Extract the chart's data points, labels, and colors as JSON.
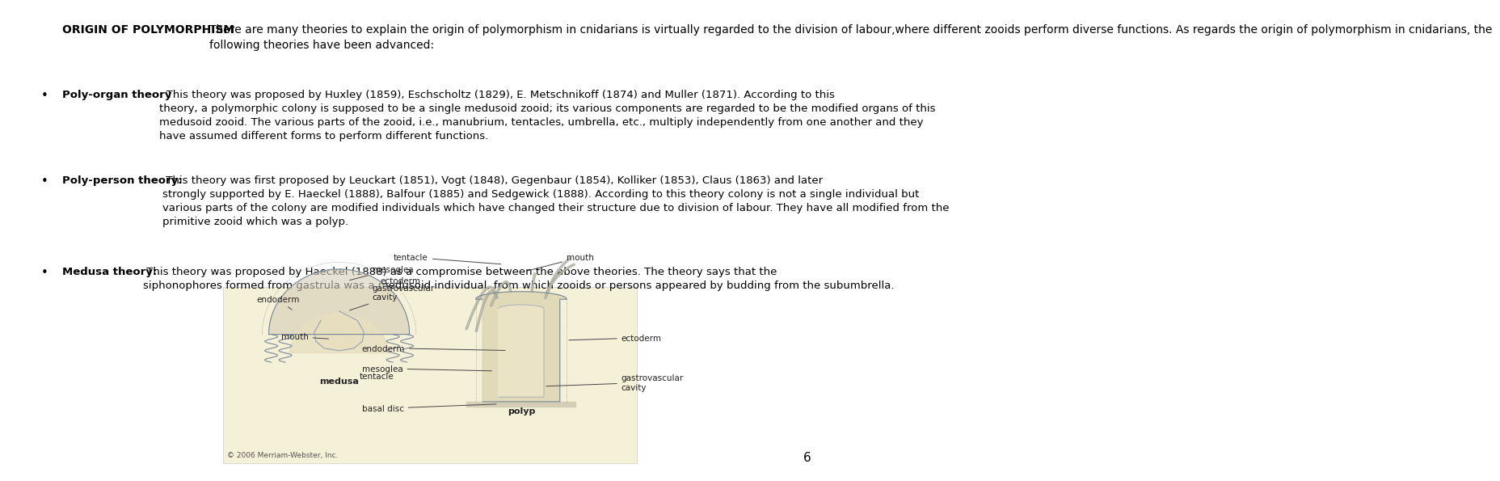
{
  "title_bold": "ORIGIN OF POLYMORPHISM",
  "title_normal": " There are many theories to explain the origin of polymorphism in cnidarians is virtually regarded to the division of labour,where different zooids perform diverse functions. As regards the origin of polymorphism in cnidarians, the following theories have been advanced:",
  "bullet1_bold": "Poly-organ theory",
  "bullet1_colon": ":",
  "bullet1_text": " This theory was proposed by Huxley (1859), Eschscholtz (1829), E. Metschnikoff (1874) and Muller (1871). According to this theory, a polymorphic colony is supposed to be a single medusoid zooid; its various components are regarded to be the modified organs of this medusoid zooid. The various parts of the zooid, i.e., manubrium, tentacles, umbrella, etc., multiply independently from one another and they have assumed different forms to perform different functions.",
  "bullet2_bold": "Poly-person theory:",
  "bullet2_text": " This theory was first proposed by Leuckart (1851), Vogt (1848), Gegenbaur (1854), Kolliker (1853), Claus (1863) and later strongly supported by E. Haeckel (1888), Balfour (1885) and Sedgewick (1888). According to this theory colony is not a single individual but various parts of the colony are modified individuals which have changed their structure due to division of labour. They have all modified from the primitive zooid which was a polyp.",
  "bullet3_bold": "Medusa theory:",
  "bullet3_text": " This theory was proposed by Haeckel (1888) as a compromise between the above theories. The theory says that the siphonophores formed from gastrula was a medusoid individual, from which zooids or persons appeared by budding from the subumbrella.",
  "page_number": "6",
  "bg_color": "#ffffff",
  "text_color": "#000000",
  "diagram_bg": "#f5f0d8",
  "font_size_title": 11,
  "font_size_body": 10.5
}
